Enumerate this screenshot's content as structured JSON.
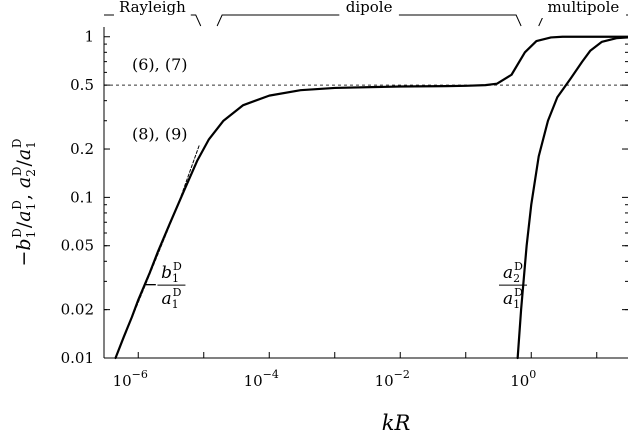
{
  "chart_data": {
    "type": "line",
    "xlabel": "kR",
    "ylabel": "−b1D/a1D, a2D/a1D",
    "x_scale": "log",
    "y_scale": "log",
    "xlim": [
      3e-07,
      30
    ],
    "ylim": [
      0.01,
      1.15
    ],
    "x_ticks": [
      {
        "value": 1e-06,
        "base": "10",
        "exp": "−6"
      },
      {
        "value": 0.0001,
        "base": "10",
        "exp": "−4"
      },
      {
        "value": 0.01,
        "base": "10",
        "exp": "−2"
      },
      {
        "value": 1,
        "base": "10",
        "exp": "0"
      }
    ],
    "y_ticks": [
      {
        "value": 1,
        "label": "1"
      },
      {
        "value": 0.5,
        "label": "0.5"
      },
      {
        "value": 0.2,
        "label": "0.2"
      },
      {
        "value": 0.1,
        "label": "0.1"
      },
      {
        "value": 0.05,
        "label": "0.05"
      },
      {
        "value": 0.02,
        "label": "0.02"
      },
      {
        "value": 0.01,
        "label": "0.01"
      }
    ],
    "regions": [
      {
        "label": "Rayleigh",
        "from": 3e-07,
        "to": 9e-06
      },
      {
        "label": "dipole",
        "from": 1.6e-05,
        "to": 0.7
      },
      {
        "label": "multipole",
        "from": 1.3,
        "to": 30
      }
    ],
    "series": [
      {
        "id": "b1",
        "style": "solid",
        "x": [
          4.5e-07,
          6e-07,
          8e-07,
          1e-06,
          1.5e-06,
          2e-06,
          3e-06,
          5e-06,
          8e-06,
          1.2e-05,
          2e-05,
          4e-05,
          0.0001,
          0.0003,
          0.001,
          0.01,
          0.05,
          0.1,
          0.2,
          0.3,
          0.5,
          0.8,
          1.2,
          2,
          3,
          5,
          8,
          30
        ],
        "y": [
          0.01,
          0.0135,
          0.018,
          0.023,
          0.034,
          0.046,
          0.068,
          0.11,
          0.17,
          0.23,
          0.3,
          0.375,
          0.43,
          0.465,
          0.48,
          0.49,
          0.493,
          0.495,
          0.5,
          0.51,
          0.58,
          0.8,
          0.94,
          0.99,
          1.0,
          1.0,
          1.0,
          1.0
        ]
      },
      {
        "id": "a2",
        "style": "solid",
        "x": [
          0.62,
          0.7,
          0.85,
          1.0,
          1.3,
          1.8,
          2.5,
          4,
          6,
          8,
          12,
          20,
          30
        ],
        "y": [
          0.01,
          0.02,
          0.05,
          0.09,
          0.18,
          0.3,
          0.42,
          0.55,
          0.7,
          0.82,
          0.93,
          0.98,
          0.99
        ]
      },
      {
        "id": "approx89",
        "style": "dashed",
        "x": [
          4.5e-07,
          1e-06,
          2e-06,
          4e-06,
          8.5e-06
        ],
        "y": [
          0.01,
          0.0222,
          0.0444,
          0.0889,
          0.21
        ]
      }
    ],
    "hline": {
      "value": 0.5,
      "style": "dashed"
    },
    "annotations": [
      {
        "id": "eq67",
        "text": "(6), (7)",
        "x": 4.5e-07,
        "y": 0.62
      },
      {
        "id": "eq89",
        "text": "(8), (9)",
        "x": 4.5e-07,
        "y": 0.23
      },
      {
        "id": "lab-b1",
        "minus": "−",
        "num": "b",
        "num_sub": "1",
        "den": "a",
        "den_sub": "1",
        "sup": "D",
        "x": 1.2e-06,
        "y": 0.028
      },
      {
        "id": "lab-a2",
        "num": "a",
        "num_sub": "2",
        "den": "a",
        "den_sub": "1",
        "sup": "D",
        "x": 0.3,
        "y": 0.028
      }
    ]
  }
}
